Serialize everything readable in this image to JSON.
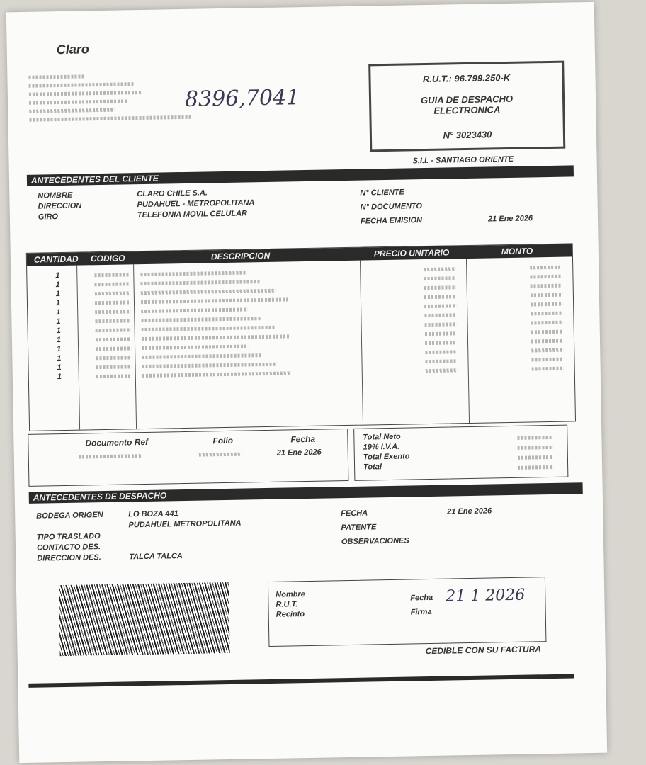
{
  "header": {
    "logo": "Claro",
    "handwritten_note": "8396,7041",
    "rut": "R.U.T.: 96.799.250-K",
    "doc_type": "GUIA DE DESPACHO ELECTRONICA",
    "number": "N° 3023430",
    "sii": "S.I.I. - SANTIAGO ORIENTE"
  },
  "client": {
    "title": "ANTECEDENTES DEL CLIENTE",
    "left": [
      {
        "label": "NOMBRE",
        "value": "CLARO CHILE S.A."
      },
      {
        "label": "DIRECCION",
        "value": "PUDAHUEL - METROPOLITANA"
      },
      {
        "label": "GIRO",
        "value": "TELEFONIA MOVIL CELULAR"
      }
    ],
    "right": [
      {
        "label": "N° CLIENTE"
      },
      {
        "label": "N° DOCUMENTO"
      },
      {
        "label": "FECHA EMISION",
        "value": "21 Ene 2026"
      }
    ]
  },
  "items": {
    "columns": [
      "CANTIDAD",
      "CODIGO",
      "DESCRIPCION",
      "PRECIO UNITARIO",
      "MONTO"
    ],
    "quantities": [
      "1",
      "1",
      "1",
      "1",
      "1",
      "1",
      "1",
      "1",
      "1",
      "1",
      "1",
      "1"
    ]
  },
  "references": {
    "columns": [
      "Documento Ref",
      "Folio",
      "Fecha"
    ],
    "date": "21 Ene 2026"
  },
  "totals": {
    "labels": [
      "Total Neto",
      "19% I.V.A.",
      "Total Exento",
      "Total"
    ]
  },
  "dispatch": {
    "title": "ANTECEDENTES DE DESPACHO",
    "left": [
      {
        "label": "BODEGA ORIGEN",
        "value": "LO BOZA 441"
      },
      {
        "label": "",
        "value": "PUDAHUEL METROPOLITANA"
      },
      {
        "label": "TIPO TRASLADO"
      },
      {
        "label": "CONTACTO DES."
      },
      {
        "label": "DIRECCION DES.",
        "value": "TALCA TALCA"
      }
    ],
    "right": [
      {
        "label": "FECHA",
        "value": "21 Ene 2026"
      },
      {
        "label": "PATENTE"
      },
      {
        "label": "OBSERVACIONES"
      }
    ]
  },
  "footer": {
    "sign_labels": [
      "Nombre",
      "R.U.T.",
      "Recinto"
    ],
    "date_label": "Fecha",
    "sign_label": "Firma",
    "handwritten_date": "21 1 2026",
    "cedible": "CEDIBLE CON SU FACTURA"
  }
}
